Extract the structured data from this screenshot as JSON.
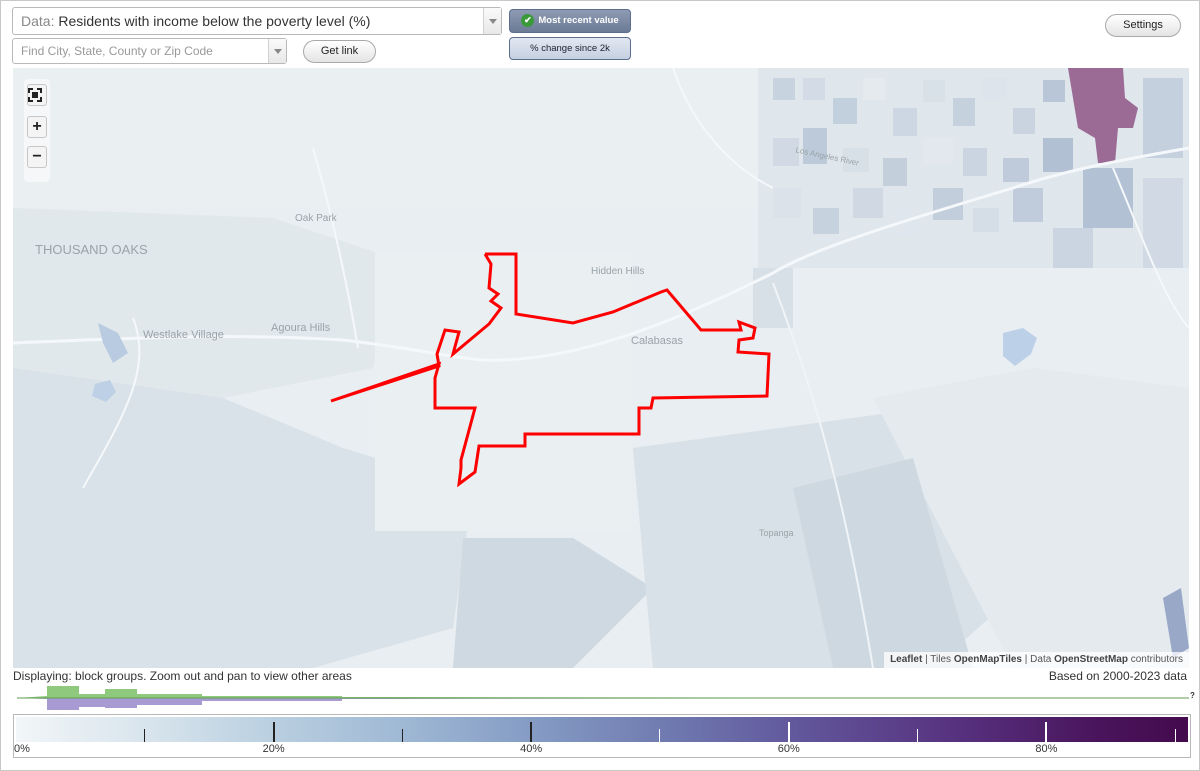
{
  "data_select": {
    "prefix": "Data:",
    "value": "Residents with income below the poverty level (%)"
  },
  "find_select": {
    "placeholder": "Find City, State, County or Zip Code"
  },
  "buttons": {
    "get_link": "Get link",
    "settings": "Settings"
  },
  "mode_buttons": {
    "recent": "Most recent value",
    "change": "% change since 2k"
  },
  "map": {
    "labels": {
      "thousand_oaks": "THOUSAND OAKS",
      "oak_park": "Oak Park",
      "westlake_village": "Westlake Village",
      "agoura_hills": "Agoura Hills",
      "hidden_hills": "Hidden Hills",
      "calabasas": "Calabasas",
      "topanga": "Topanga",
      "los_angeles_river": "Los Angeles River"
    },
    "zoom_controls": {
      "fullscreen": "⛶",
      "zoom_in": "+",
      "zoom_out": "−"
    },
    "attribution": {
      "leaflet": "Leaflet",
      "tiles_prefix": "Tiles",
      "tiles": "OpenMapTiles",
      "data_prefix": "Data",
      "data": "OpenStreetMap",
      "suffix": "contributors"
    },
    "boundary_color": "#ff0000"
  },
  "status_text": "Displaying: block groups. Zoom out and pan to view other areas",
  "years_text": "Based on 2000-2023 data",
  "histogram": {
    "question_mark": "?",
    "color_top": "#8fc97e",
    "color_bottom": "#a89ad3"
  },
  "legend": {
    "tick_labels": [
      "0%",
      "20%",
      "40%",
      "60%",
      "80%"
    ],
    "scale_min": 0,
    "scale_max": 91,
    "color_low": "#f2f6f8",
    "color_high": "#440a4d"
  }
}
